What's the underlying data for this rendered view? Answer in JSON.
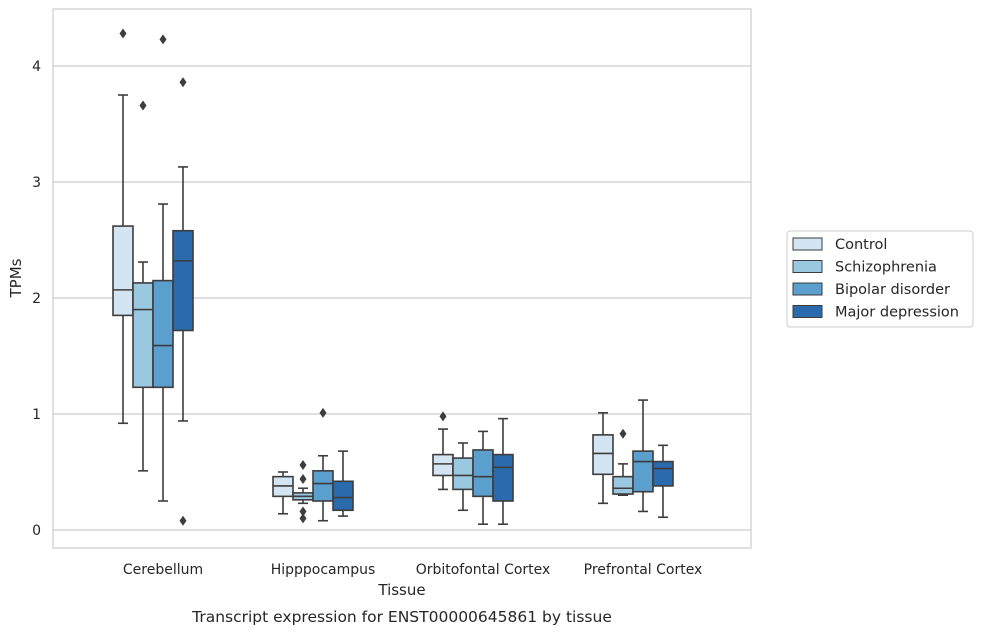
{
  "chart_data": {
    "type": "box",
    "title": "",
    "caption": "Transcript expression for ENST00000645861 by tissue",
    "xlabel": "Tissue",
    "ylabel": "TPMs",
    "ylim": [
      -0.15,
      4.5
    ],
    "yticks": [
      0,
      1,
      2,
      3,
      4
    ],
    "grid": "horizontal",
    "legend_position": "right",
    "categories": [
      "Cerebellum",
      "Hipppocampus",
      "Orbitofontal Cortex",
      "Prefrontal Cortex"
    ],
    "series": [
      {
        "name": "Control",
        "color": "#d3e4f3",
        "boxes": [
          {
            "min": 0.92,
            "q1": 1.85,
            "median": 2.07,
            "q3": 2.62,
            "max": 3.75,
            "outliers": [
              4.28
            ]
          },
          {
            "min": 0.14,
            "q1": 0.29,
            "median": 0.38,
            "q3": 0.46,
            "max": 0.5,
            "outliers": []
          },
          {
            "min": 0.35,
            "q1": 0.47,
            "median": 0.57,
            "q3": 0.65,
            "max": 0.87,
            "outliers": [
              0.98
            ]
          },
          {
            "min": 0.23,
            "q1": 0.48,
            "median": 0.66,
            "q3": 0.82,
            "max": 1.01,
            "outliers": []
          }
        ]
      },
      {
        "name": "Schizophrenia",
        "color": "#9ac8e0",
        "boxes": [
          {
            "min": 0.51,
            "q1": 1.23,
            "median": 1.9,
            "q3": 2.13,
            "max": 2.31,
            "outliers": [
              3.66
            ]
          },
          {
            "min": 0.23,
            "q1": 0.26,
            "median": 0.29,
            "q3": 0.32,
            "max": 0.36,
            "outliers": [
              0.56,
              0.44,
              0.16,
              0.1
            ]
          },
          {
            "min": 0.17,
            "q1": 0.35,
            "median": 0.47,
            "q3": 0.62,
            "max": 0.75,
            "outliers": []
          },
          {
            "min": 0.3,
            "q1": 0.31,
            "median": 0.36,
            "q3": 0.46,
            "max": 0.57,
            "outliers": [
              0.83
            ]
          }
        ]
      },
      {
        "name": "Bipolar disorder",
        "color": "#5a9fcd",
        "boxes": [
          {
            "min": 0.25,
            "q1": 1.23,
            "median": 1.59,
            "q3": 2.15,
            "max": 2.81,
            "outliers": [
              4.23
            ]
          },
          {
            "min": 0.08,
            "q1": 0.25,
            "median": 0.4,
            "q3": 0.51,
            "max": 0.64,
            "outliers": [
              1.01
            ]
          },
          {
            "min": 0.05,
            "q1": 0.29,
            "median": 0.46,
            "q3": 0.69,
            "max": 0.85,
            "outliers": []
          },
          {
            "min": 0.16,
            "q1": 0.33,
            "median": 0.59,
            "q3": 0.68,
            "max": 1.12,
            "outliers": []
          }
        ]
      },
      {
        "name": "Major depression",
        "color": "#2a6aad",
        "boxes": [
          {
            "min": 0.94,
            "q1": 1.72,
            "median": 2.32,
            "q3": 2.58,
            "max": 3.13,
            "outliers": [
              3.86,
              0.08
            ]
          },
          {
            "min": 0.12,
            "q1": 0.17,
            "median": 0.28,
            "q3": 0.42,
            "max": 0.68,
            "outliers": []
          },
          {
            "min": 0.05,
            "q1": 0.25,
            "median": 0.54,
            "q3": 0.65,
            "max": 0.96,
            "outliers": []
          },
          {
            "min": 0.11,
            "q1": 0.38,
            "median": 0.53,
            "q3": 0.59,
            "max": 0.73,
            "outliers": []
          }
        ]
      }
    ]
  }
}
